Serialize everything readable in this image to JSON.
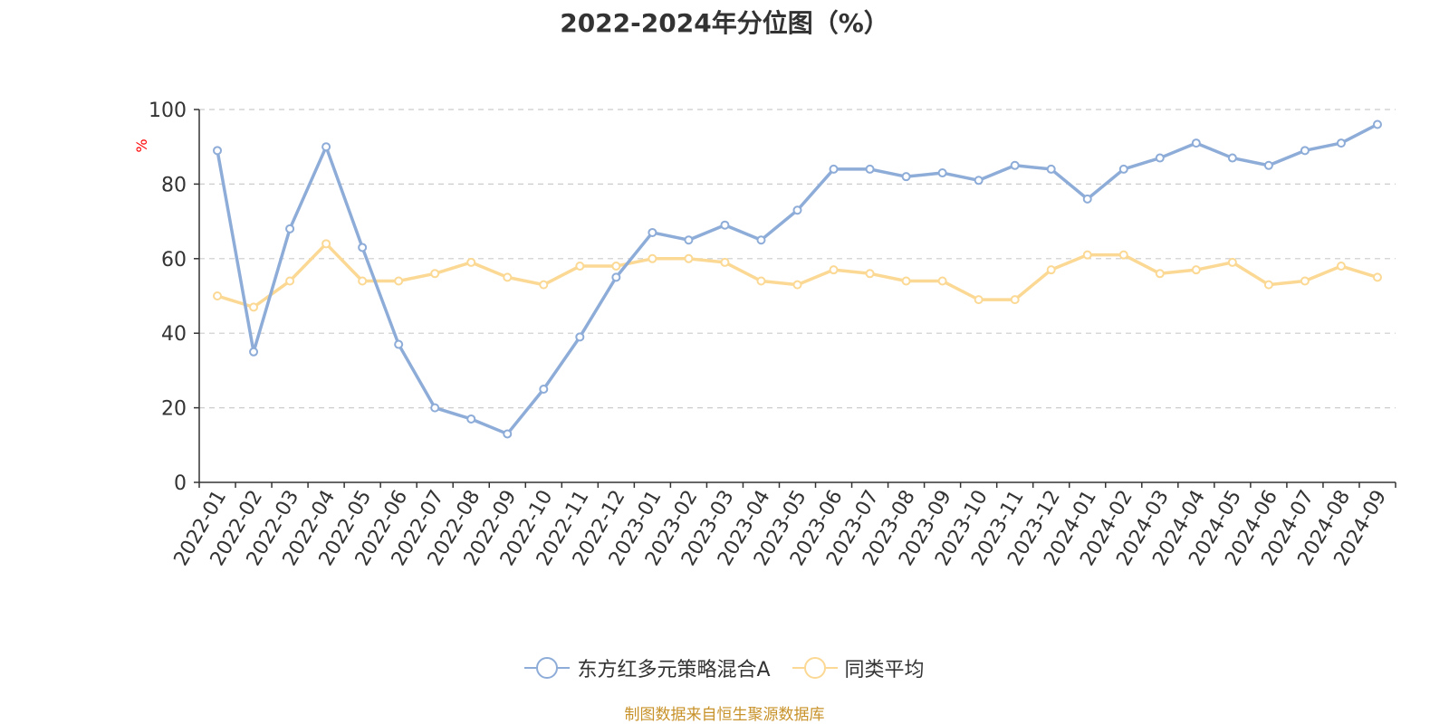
{
  "title": "2022-2024年分位图（%）",
  "source_note": "制图数据来自恒生聚源数据库",
  "colors": {
    "series_a": "#8eacd8",
    "series_b": "#fbd994",
    "grid": "#cccccc",
    "axis": "#333333",
    "ylabel": "#ff0000"
  },
  "chart_data": {
    "type": "line",
    "ylabel": "%",
    "ylim": [
      0,
      100
    ],
    "yticks": [
      0,
      20,
      40,
      60,
      80,
      100
    ],
    "grid": "horizontal dashed",
    "legend_position": "bottom",
    "categories": [
      "2022-01",
      "2022-02",
      "2022-03",
      "2022-04",
      "2022-05",
      "2022-06",
      "2022-07",
      "2022-08",
      "2022-09",
      "2022-10",
      "2022-11",
      "2022-12",
      "2023-01",
      "2023-02",
      "2023-03",
      "2023-04",
      "2023-05",
      "2023-06",
      "2023-07",
      "2023-08",
      "2023-09",
      "2023-10",
      "2023-11",
      "2023-12",
      "2024-01",
      "2024-02",
      "2024-03",
      "2024-04",
      "2024-05",
      "2024-06",
      "2024-07",
      "2024-08",
      "2024-09"
    ],
    "series": [
      {
        "name": "东方红多元策略混合A",
        "values": [
          89,
          35,
          68,
          90,
          63,
          37,
          20,
          17,
          13,
          25,
          39,
          55,
          67,
          65,
          69,
          65,
          73,
          84,
          84,
          82,
          83,
          81,
          85,
          84,
          76,
          84,
          87,
          91,
          87,
          85,
          89,
          91,
          96
        ]
      },
      {
        "name": "同类平均",
        "values": [
          50,
          47,
          54,
          64,
          54,
          54,
          56,
          59,
          55,
          53,
          58,
          58,
          60,
          60,
          59,
          54,
          53,
          57,
          56,
          54,
          54,
          49,
          49,
          57,
          61,
          61,
          56,
          57,
          59,
          53,
          54,
          58,
          55
        ]
      }
    ]
  }
}
